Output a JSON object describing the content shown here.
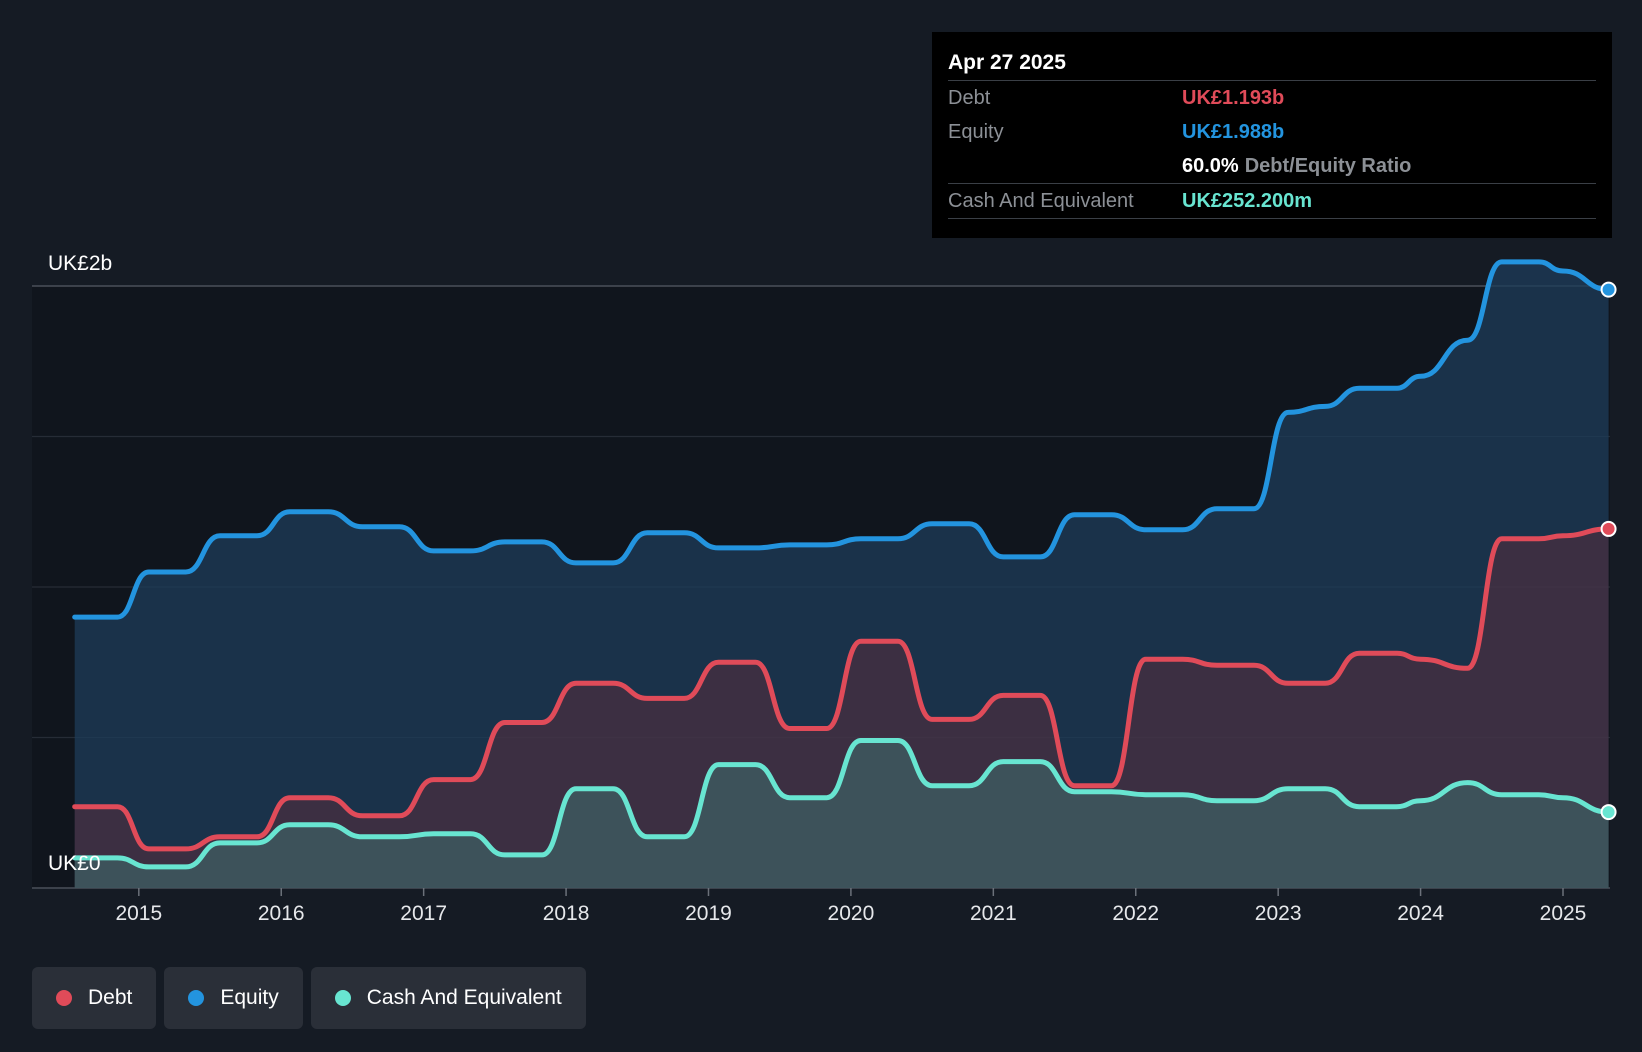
{
  "chart_data": {
    "type": "area",
    "title": "",
    "xlabel": "",
    "ylabel": "",
    "currency_unit": "UK£ billions",
    "y_axis_labels": {
      "top": "UK£2b",
      "bottom": "UK£0"
    },
    "ylim": [
      0,
      2.0
    ],
    "xlim": [
      2014.25,
      2025.33
    ],
    "x_ticks": [
      2015,
      2016,
      2017,
      2018,
      2019,
      2020,
      2021,
      2022,
      2023,
      2024,
      2025
    ],
    "x_tick_labels": [
      "2015",
      "2016",
      "2017",
      "2018",
      "2019",
      "2020",
      "2021",
      "2022",
      "2023",
      "2024",
      "2025"
    ],
    "series": [
      {
        "name": "Equity",
        "color": "#2394df",
        "points": [
          [
            2014.55,
            0.9
          ],
          [
            2014.85,
            0.9
          ],
          [
            2015.07,
            1.05
          ],
          [
            2015.33,
            1.05
          ],
          [
            2015.57,
            1.17
          ],
          [
            2015.83,
            1.17
          ],
          [
            2016.06,
            1.25
          ],
          [
            2016.33,
            1.25
          ],
          [
            2016.57,
            1.2
          ],
          [
            2016.83,
            1.2
          ],
          [
            2017.07,
            1.12
          ],
          [
            2017.33,
            1.12
          ],
          [
            2017.57,
            1.15
          ],
          [
            2017.83,
            1.15
          ],
          [
            2018.07,
            1.08
          ],
          [
            2018.33,
            1.08
          ],
          [
            2018.57,
            1.18
          ],
          [
            2018.83,
            1.18
          ],
          [
            2019.07,
            1.13
          ],
          [
            2019.33,
            1.13
          ],
          [
            2019.57,
            1.14
          ],
          [
            2019.83,
            1.14
          ],
          [
            2020.07,
            1.16
          ],
          [
            2020.33,
            1.16
          ],
          [
            2020.57,
            1.21
          ],
          [
            2020.83,
            1.21
          ],
          [
            2021.07,
            1.1
          ],
          [
            2021.33,
            1.1
          ],
          [
            2021.57,
            1.24
          ],
          [
            2021.83,
            1.24
          ],
          [
            2022.07,
            1.19
          ],
          [
            2022.33,
            1.19
          ],
          [
            2022.57,
            1.26
          ],
          [
            2022.83,
            1.26
          ],
          [
            2023.07,
            1.58
          ],
          [
            2023.33,
            1.6
          ],
          [
            2023.57,
            1.66
          ],
          [
            2023.83,
            1.66
          ],
          [
            2024.0,
            1.7
          ],
          [
            2024.33,
            1.82
          ],
          [
            2024.57,
            2.08
          ],
          [
            2024.83,
            2.08
          ],
          [
            2025.0,
            2.05
          ],
          [
            2025.32,
            1.988
          ]
        ]
      },
      {
        "name": "Debt",
        "color": "#e04b59",
        "points": [
          [
            2014.55,
            0.27
          ],
          [
            2014.85,
            0.27
          ],
          [
            2015.07,
            0.13
          ],
          [
            2015.33,
            0.13
          ],
          [
            2015.57,
            0.17
          ],
          [
            2015.83,
            0.17
          ],
          [
            2016.06,
            0.3
          ],
          [
            2016.33,
            0.3
          ],
          [
            2016.57,
            0.24
          ],
          [
            2016.83,
            0.24
          ],
          [
            2017.07,
            0.36
          ],
          [
            2017.33,
            0.36
          ],
          [
            2017.57,
            0.55
          ],
          [
            2017.83,
            0.55
          ],
          [
            2018.07,
            0.68
          ],
          [
            2018.33,
            0.68
          ],
          [
            2018.57,
            0.63
          ],
          [
            2018.83,
            0.63
          ],
          [
            2019.07,
            0.75
          ],
          [
            2019.33,
            0.75
          ],
          [
            2019.57,
            0.53
          ],
          [
            2019.83,
            0.53
          ],
          [
            2020.07,
            0.82
          ],
          [
            2020.33,
            0.82
          ],
          [
            2020.57,
            0.56
          ],
          [
            2020.83,
            0.56
          ],
          [
            2021.07,
            0.64
          ],
          [
            2021.33,
            0.64
          ],
          [
            2021.57,
            0.34
          ],
          [
            2021.83,
            0.34
          ],
          [
            2022.07,
            0.76
          ],
          [
            2022.33,
            0.76
          ],
          [
            2022.57,
            0.74
          ],
          [
            2022.83,
            0.74
          ],
          [
            2023.07,
            0.68
          ],
          [
            2023.33,
            0.68
          ],
          [
            2023.57,
            0.78
          ],
          [
            2023.83,
            0.78
          ],
          [
            2024.0,
            0.76
          ],
          [
            2024.33,
            0.73
          ],
          [
            2024.57,
            1.16
          ],
          [
            2024.83,
            1.16
          ],
          [
            2025.0,
            1.17
          ],
          [
            2025.32,
            1.193
          ]
        ]
      },
      {
        "name": "Cash And Equivalent",
        "color": "#68e5d1",
        "points": [
          [
            2014.55,
            0.1
          ],
          [
            2014.85,
            0.1
          ],
          [
            2015.07,
            0.07
          ],
          [
            2015.33,
            0.07
          ],
          [
            2015.57,
            0.15
          ],
          [
            2015.83,
            0.15
          ],
          [
            2016.06,
            0.21
          ],
          [
            2016.33,
            0.21
          ],
          [
            2016.57,
            0.17
          ],
          [
            2016.83,
            0.17
          ],
          [
            2017.07,
            0.18
          ],
          [
            2017.33,
            0.18
          ],
          [
            2017.57,
            0.11
          ],
          [
            2017.83,
            0.11
          ],
          [
            2018.07,
            0.33
          ],
          [
            2018.33,
            0.33
          ],
          [
            2018.57,
            0.17
          ],
          [
            2018.83,
            0.17
          ],
          [
            2019.07,
            0.41
          ],
          [
            2019.33,
            0.41
          ],
          [
            2019.57,
            0.3
          ],
          [
            2019.83,
            0.3
          ],
          [
            2020.07,
            0.49
          ],
          [
            2020.33,
            0.49
          ],
          [
            2020.57,
            0.34
          ],
          [
            2020.83,
            0.34
          ],
          [
            2021.07,
            0.42
          ],
          [
            2021.33,
            0.42
          ],
          [
            2021.57,
            0.32
          ],
          [
            2021.83,
            0.32
          ],
          [
            2022.07,
            0.31
          ],
          [
            2022.33,
            0.31
          ],
          [
            2022.57,
            0.29
          ],
          [
            2022.83,
            0.29
          ],
          [
            2023.07,
            0.33
          ],
          [
            2023.33,
            0.33
          ],
          [
            2023.57,
            0.27
          ],
          [
            2023.83,
            0.27
          ],
          [
            2024.0,
            0.29
          ],
          [
            2024.33,
            0.35
          ],
          [
            2024.57,
            0.31
          ],
          [
            2024.83,
            0.31
          ],
          [
            2025.0,
            0.3
          ],
          [
            2025.32,
            0.2522
          ]
        ]
      }
    ],
    "tooltip": {
      "date": "Apr 27 2025",
      "rows": [
        {
          "label": "Debt",
          "value": "UK£1.193b",
          "color": "#e04b59"
        },
        {
          "label": "Equity",
          "value": "UK£1.988b",
          "color": "#2394df"
        },
        {
          "ratio_value": "60.0%",
          "ratio_label": "Debt/Equity Ratio"
        },
        {
          "label": "Cash And Equivalent",
          "value": "UK£252.200m",
          "color": "#68e5d1"
        }
      ]
    },
    "legend": [
      {
        "label": "Debt",
        "color": "#e04b59"
      },
      {
        "label": "Equity",
        "color": "#2394df"
      },
      {
        "label": "Cash And Equivalent",
        "color": "#68e5d1"
      }
    ]
  }
}
